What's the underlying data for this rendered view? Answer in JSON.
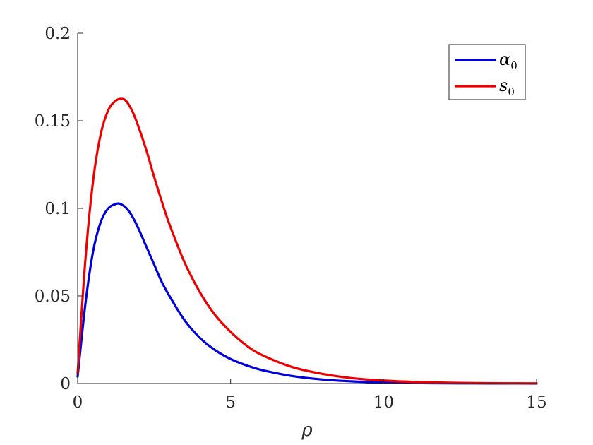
{
  "chart_data": {
    "type": "line",
    "xlabel": "ρ",
    "ylabel": "",
    "xlim": [
      0,
      15
    ],
    "ylim": [
      0,
      0.2
    ],
    "xticks": [
      0,
      5,
      10,
      15
    ],
    "xtick_labels": [
      "0",
      "5",
      "10",
      "15"
    ],
    "yticks": [
      0,
      0.05,
      0.1,
      0.15,
      0.2
    ],
    "ytick_labels": [
      "0",
      "0.05",
      "0.1",
      "0.15",
      "0.2"
    ],
    "grid": false,
    "legend_position": "top-right",
    "series": [
      {
        "name": "α0",
        "label_base": "α",
        "label_sub": "0",
        "color": "#0000dd",
        "x": [
          0,
          0.25,
          0.5,
          0.75,
          1.0,
          1.25,
          1.4,
          1.6,
          1.8,
          2.0,
          2.25,
          2.5,
          2.75,
          3.0,
          3.5,
          4.0,
          4.5,
          5.0,
          5.5,
          6.0,
          7.0,
          8.0,
          9.0,
          10.0,
          11.0,
          12.0,
          13.0,
          14.0,
          15.0
        ],
        "y": [
          0.004,
          0.045,
          0.075,
          0.092,
          0.1,
          0.1025,
          0.1025,
          0.1,
          0.095,
          0.088,
          0.078,
          0.068,
          0.058,
          0.05,
          0.036,
          0.026,
          0.019,
          0.014,
          0.0105,
          0.0078,
          0.0043,
          0.0023,
          0.0012,
          0.0006,
          0.0003,
          0.00015,
          7e-05,
          3e-05,
          1e-05
        ]
      },
      {
        "name": "s0",
        "label_base": "s",
        "label_sub": "0",
        "color": "#ee0000",
        "x": [
          0,
          0.25,
          0.5,
          0.75,
          1.0,
          1.25,
          1.45,
          1.6,
          1.8,
          2.0,
          2.25,
          2.5,
          2.75,
          3.0,
          3.5,
          4.0,
          4.5,
          5.0,
          5.5,
          6.0,
          7.0,
          8.0,
          9.0,
          10.0,
          11.0,
          12.0,
          13.0,
          14.0,
          15.0
        ],
        "y": [
          0.006,
          0.07,
          0.115,
          0.142,
          0.156,
          0.1615,
          0.1625,
          0.161,
          0.155,
          0.146,
          0.133,
          0.118,
          0.104,
          0.091,
          0.069,
          0.052,
          0.039,
          0.0295,
          0.022,
          0.0165,
          0.0095,
          0.0055,
          0.003,
          0.0017,
          0.0009,
          0.0005,
          0.00025,
          0.00012,
          5e-05
        ]
      }
    ]
  }
}
